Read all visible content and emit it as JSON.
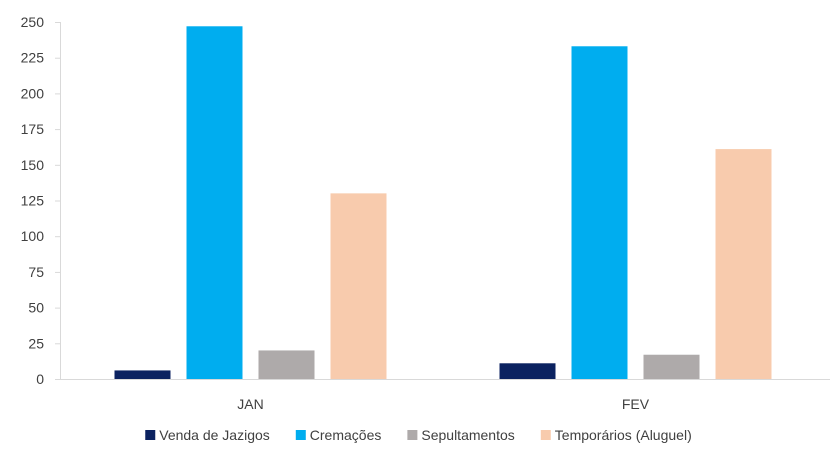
{
  "chart_data": {
    "type": "bar",
    "title": "",
    "xlabel": "",
    "ylabel": "",
    "categories": [
      "JAN",
      "FEV"
    ],
    "ylim": [
      0,
      250
    ],
    "yticks": [
      0,
      25,
      50,
      75,
      100,
      125,
      150,
      175,
      200,
      225,
      250
    ],
    "grid": false,
    "legend_position": "bottom",
    "series": [
      {
        "name": "Venda de Jazigos",
        "color": "#0b2260",
        "values": [
          6,
          11
        ]
      },
      {
        "name": "Cremações",
        "color": "#00adef",
        "values": [
          247,
          233
        ]
      },
      {
        "name": "Sepultamentos",
        "color": "#aeaaaa",
        "values": [
          20,
          17
        ]
      },
      {
        "name": "Temporários (Aluguel)",
        "color": "#f8cbad",
        "values": [
          130,
          161
        ]
      }
    ]
  }
}
